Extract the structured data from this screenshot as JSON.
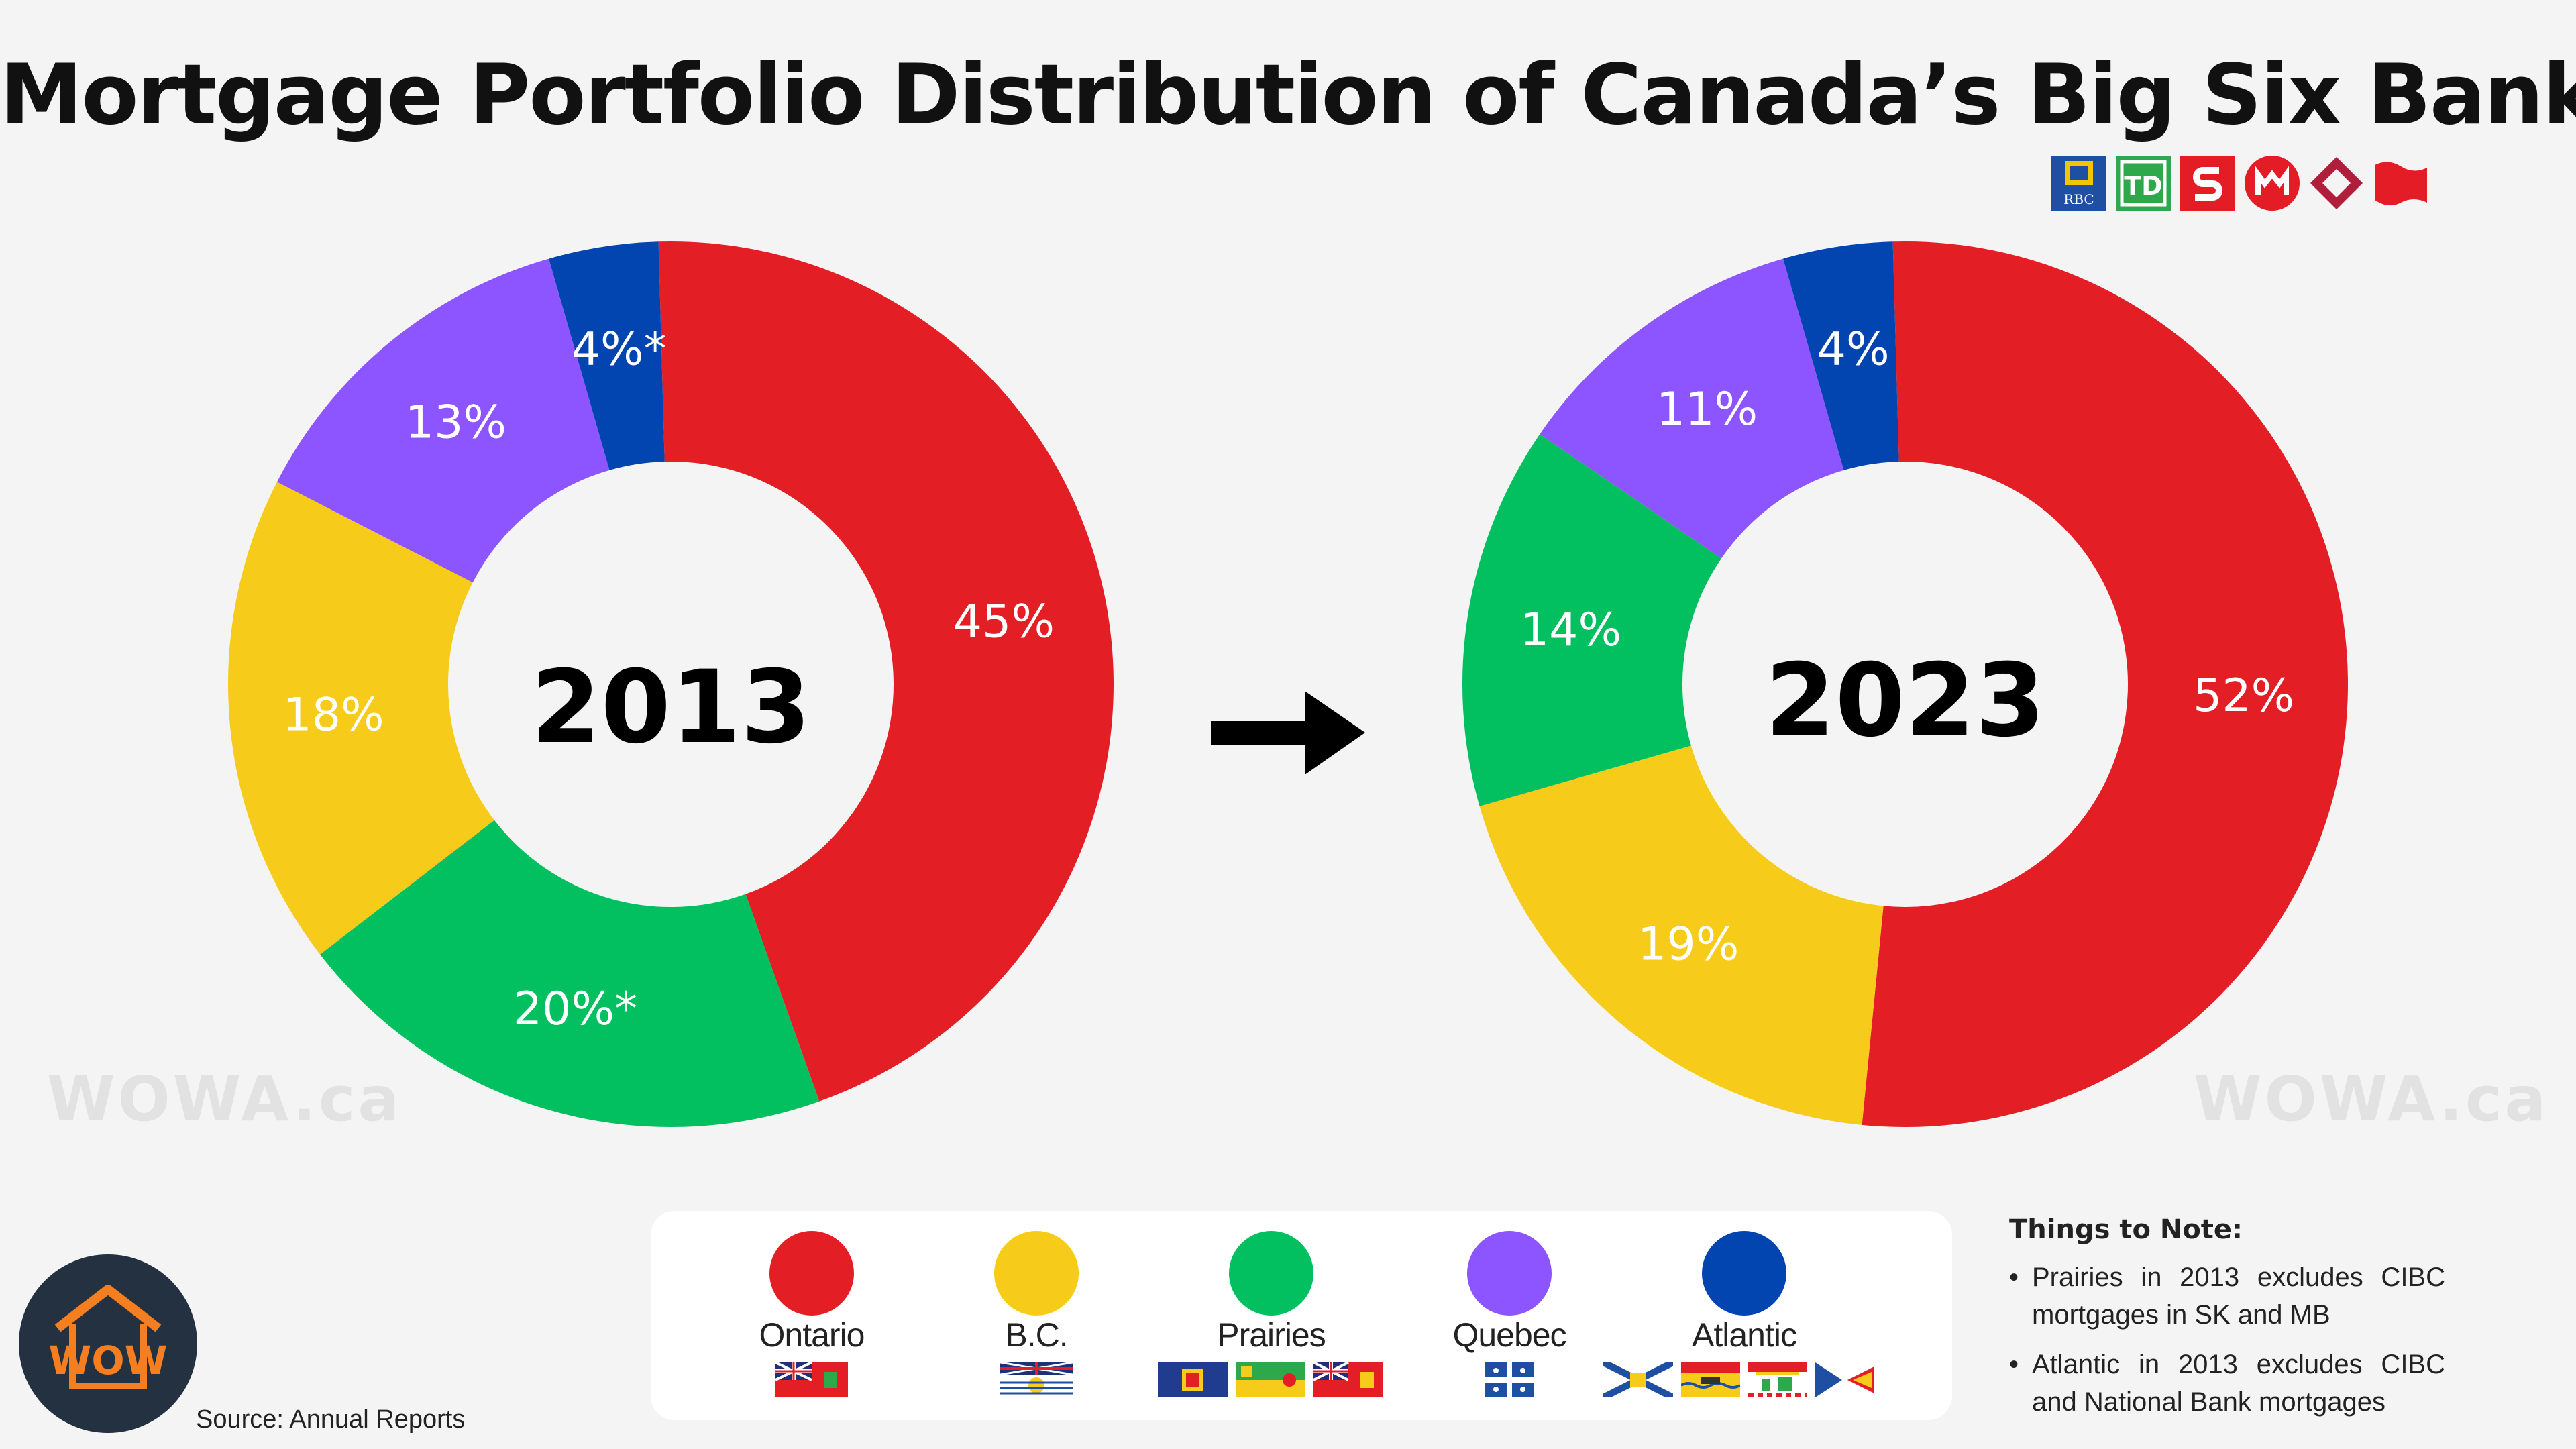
{
  "title": "Mortgage Portfolio Distribution of Canada’s Big Six Banks",
  "bank_logos": [
    {
      "name": "rbc-logo",
      "text": "RBC",
      "color": "#1f4fa3"
    },
    {
      "name": "td-logo",
      "text": "TD",
      "color": "#2da84a"
    },
    {
      "name": "scotiabank-logo",
      "text": "",
      "color": "#e31c25"
    },
    {
      "name": "bmo-logo",
      "text": "",
      "color": "#e31c25"
    },
    {
      "name": "cibc-logo",
      "text": "",
      "color": "#b11e3c"
    },
    {
      "name": "national-bank-logo",
      "text": "",
      "color": "#e31c25"
    }
  ],
  "chart_data": [
    {
      "type": "pie",
      "subtype": "donut",
      "center_label": "2013",
      "slices": [
        {
          "name": "Ontario",
          "value": 45,
          "label": "45%",
          "color": "#e31e24"
        },
        {
          "name": "Prairies",
          "value": 20,
          "label": "20%*",
          "color": "#02c060"
        },
        {
          "name": "B.C.",
          "value": 18,
          "label": "18%",
          "color": "#f6cb1a"
        },
        {
          "name": "Quebec",
          "value": 13,
          "label": "13%",
          "color": "#8d55ff"
        },
        {
          "name": "Atlantic",
          "value": 4,
          "label": "4%*",
          "color": "#0345b0"
        }
      ]
    },
    {
      "type": "pie",
      "subtype": "donut",
      "center_label": "2023",
      "slices": [
        {
          "name": "Ontario",
          "value": 52,
          "label": "52%",
          "color": "#e31e24"
        },
        {
          "name": "B.C.",
          "value": 19,
          "label": "19%",
          "color": "#f6cb1a"
        },
        {
          "name": "Prairies",
          "value": 14,
          "label": "14%",
          "color": "#02c060"
        },
        {
          "name": "Quebec",
          "value": 11,
          "label": "11%",
          "color": "#8d55ff"
        },
        {
          "name": "Atlantic",
          "value": 4,
          "label": "4%",
          "color": "#0345b0"
        }
      ]
    }
  ],
  "watermark": "WOWA.ca",
  "legend": [
    {
      "label": "Ontario",
      "color": "#e31e24",
      "flags": [
        "ontario-flag"
      ]
    },
    {
      "label": "B.C.",
      "color": "#f6cb1a",
      "flags": [
        "bc-flag"
      ]
    },
    {
      "label": "Prairies",
      "color": "#02c060",
      "flags": [
        "alberta-flag",
        "saskatchewan-flag",
        "manitoba-flag"
      ]
    },
    {
      "label": "Quebec",
      "color": "#8d55ff",
      "flags": [
        "quebec-flag"
      ]
    },
    {
      "label": "Atlantic",
      "color": "#0345b0",
      "flags": [
        "nova-scotia-flag",
        "new-brunswick-flag",
        "pei-flag",
        "newfoundland-flag"
      ]
    }
  ],
  "notes": {
    "title": "Things to Note:",
    "items": [
      "Prairies in 2013 excludes CIBC mortgages in SK and MB",
      "Atlantic in 2013 excludes CIBC and National Bank mortgages"
    ]
  },
  "source": "Source: Annual Reports",
  "brand_logo": {
    "text": "WOW",
    "background": "#243140",
    "accent": "#f47e20"
  }
}
